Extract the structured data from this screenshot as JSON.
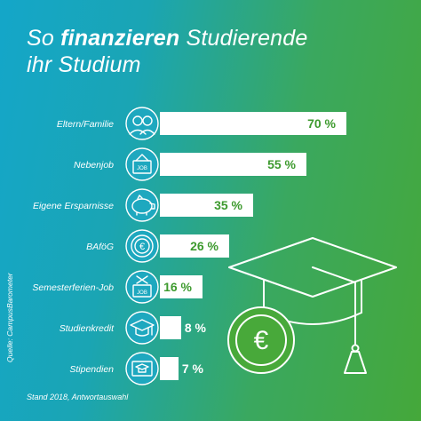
{
  "title": {
    "line1_prefix": "So",
    "line1_bold": "finanzieren",
    "line1_suffix": "Studierende",
    "line2": "ihr Studium"
  },
  "source": "Quelle: CampusBarometer",
  "footnote": "Stand 2018, Antwortauswahl",
  "colors": {
    "bar": "#ffffff",
    "value_text": "#3d9a2e",
    "icon_stroke": "#ffffff"
  },
  "chart_data": {
    "type": "bar",
    "orientation": "horizontal",
    "categories": [
      "Eltern/Familie",
      "Nebenjob",
      "Eigene Ersparnisse",
      "BAföG",
      "Semesterferien-Job",
      "Studienkredit",
      "Stipendien"
    ],
    "values": [
      70,
      55,
      35,
      26,
      16,
      8,
      7
    ],
    "value_labels": [
      "70 %",
      "55 %",
      "35 %",
      "26 %",
      "16 %",
      "8 %",
      "7 %"
    ],
    "value_label_inside": [
      true,
      true,
      true,
      true,
      true,
      false,
      false
    ],
    "icons": [
      "family-icon",
      "job-sign-icon",
      "piggy-bank-icon",
      "euro-coin-icon",
      "job-box-icon",
      "graduation-cap-icon",
      "certificate-icon"
    ],
    "unit": "%",
    "xlim": [
      0,
      100
    ],
    "legend": "none",
    "grid": false
  },
  "decoration": {
    "name": "graduation-cap-with-euro-coin-icon",
    "coin_symbol": "€"
  }
}
